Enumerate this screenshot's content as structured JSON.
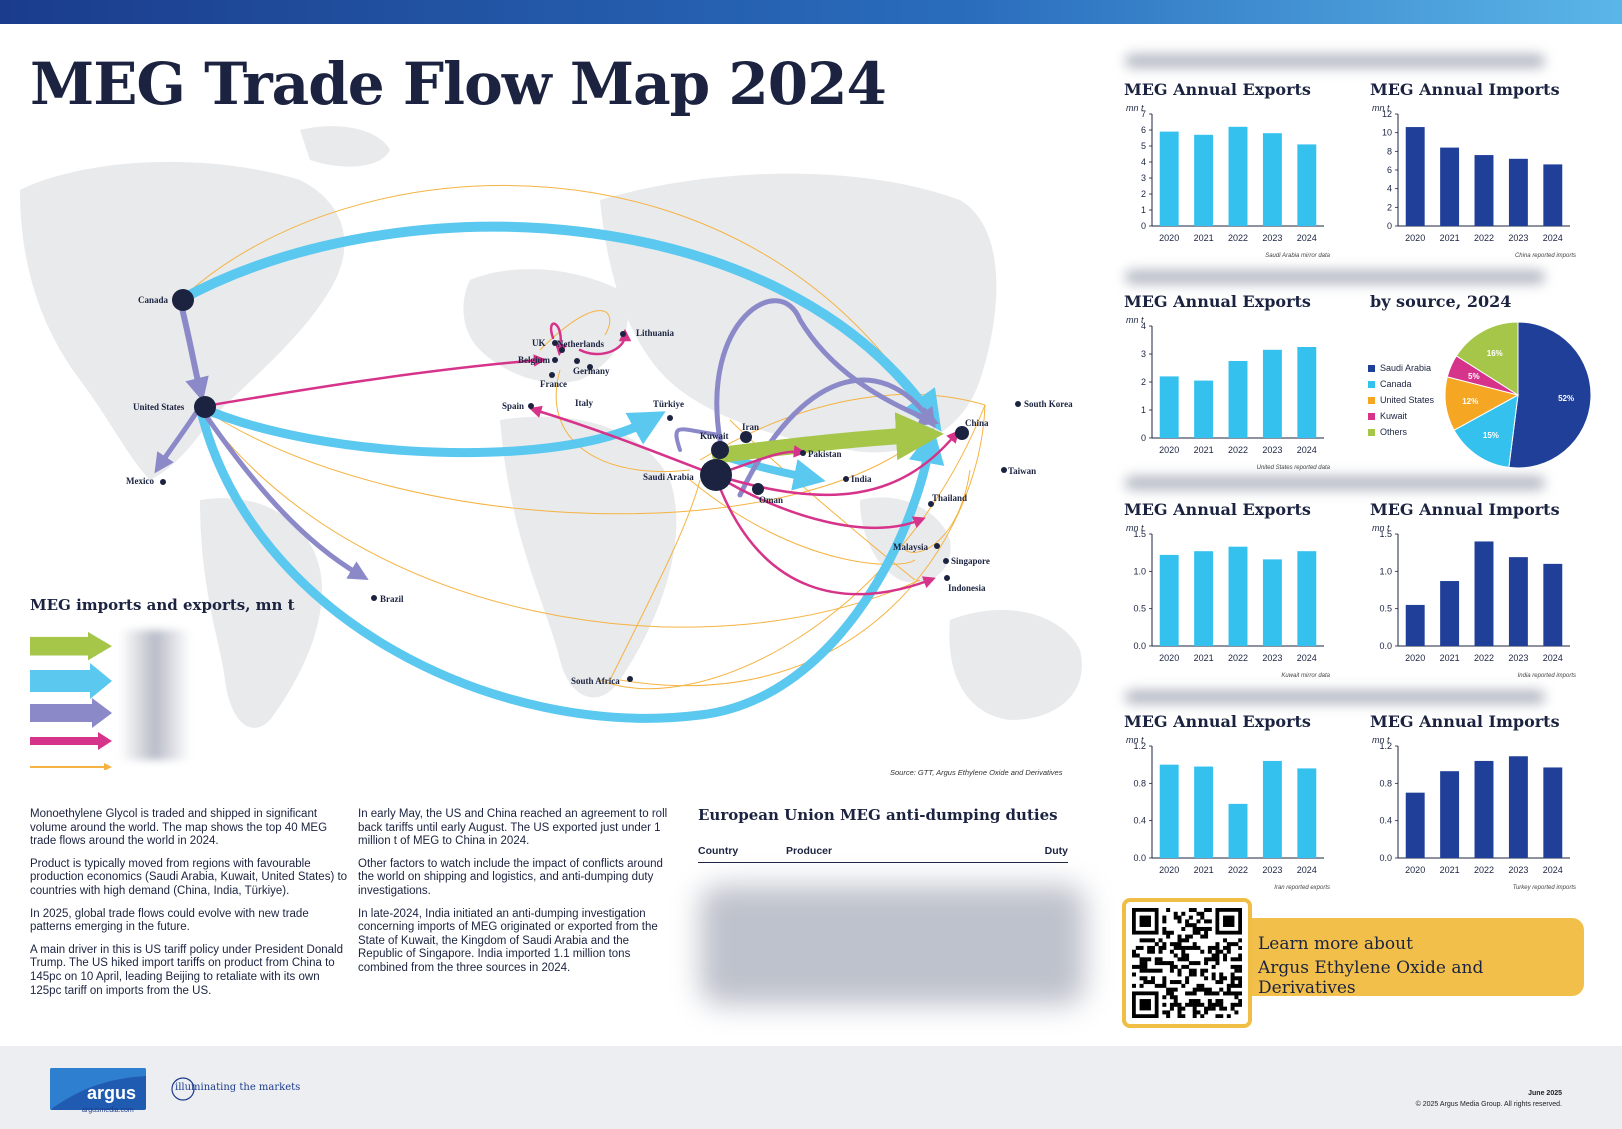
{
  "title": "MEG Trade Flow Map 2024",
  "colors": {
    "green": "#a6c64a",
    "lightblue": "#5bc8f0",
    "purple": "#8c89c9",
    "magenta": "#d6338a",
    "orange": "#f5b342",
    "navy": "#1b2340",
    "darkblue": "#1f3f99"
  },
  "map": {
    "labels": [
      {
        "id": "canada",
        "text": "Canada"
      },
      {
        "id": "us",
        "text": "United States"
      },
      {
        "id": "mexico",
        "text": "Mexico"
      },
      {
        "id": "brazil",
        "text": "Brazil"
      },
      {
        "id": "uk",
        "text": "UK"
      },
      {
        "id": "netherlands",
        "text": "Netherlands"
      },
      {
        "id": "belgium",
        "text": "Belgium"
      },
      {
        "id": "germany",
        "text": "Germany"
      },
      {
        "id": "france",
        "text": "France"
      },
      {
        "id": "lithuania",
        "text": "Lithuania"
      },
      {
        "id": "italy",
        "text": "Italy"
      },
      {
        "id": "spain",
        "text": "Spain"
      },
      {
        "id": "turkiye",
        "text": "Türkiye"
      },
      {
        "id": "iran",
        "text": "Iran"
      },
      {
        "id": "kuwait",
        "text": "Kuwait"
      },
      {
        "id": "saudi",
        "text": "Saudi Arabia"
      },
      {
        "id": "pakistan",
        "text": "Pakistan"
      },
      {
        "id": "india",
        "text": "India"
      },
      {
        "id": "oman",
        "text": "Oman"
      },
      {
        "id": "china",
        "text": "China"
      },
      {
        "id": "southkorea",
        "text": "South Korea"
      },
      {
        "id": "taiwan",
        "text": "Taiwan"
      },
      {
        "id": "thailand",
        "text": "Thailand"
      },
      {
        "id": "malaysia",
        "text": "Malaysia"
      },
      {
        "id": "singapore",
        "text": "Singapore"
      },
      {
        "id": "indonesia",
        "text": "Indonesia"
      },
      {
        "id": "southafrica",
        "text": "South Africa"
      }
    ]
  },
  "legend": {
    "title": "MEG imports and exports, mn t"
  },
  "source": "Source: GTT, Argus Ethylene Oxide and Derivatives",
  "text_col1": [
    "Monoethylene Glycol is traded and shipped in significant volume around the world. The map shows the top 40 MEG trade flows around the world in 2024.",
    "Product is typically moved from regions with favourable production economics (Saudi Arabia, Kuwait, United States) to countries with high demand (China, India, Türkiye).",
    "In 2025, global trade flows could evolve with new trade patterns emerging in the future.",
    "A main driver in this is US tariff policy under President Donald Trump. The US hiked import tariffs on product from China to 145pc on 10 April, leading Beijing to retaliate with its own 125pc tariff on imports from the US."
  ],
  "text_col2": [
    "In early May, the US and China reached an agreement to roll back tariffs until early August. The US exported just under 1 million t of MEG to China in 2024.",
    "Other factors to watch include the impact of conflicts around the world on shipping and logistics, and anti-dumping duty investigations.",
    "In late-2024, India initiated an anti-dumping investigation concerning imports of MEG originated or exported from the State of Kuwait, the Kingdom of Saudi Arabia and the Republic of Singapore. India imported 1.1 million tons combined from the three sources in 2024."
  ],
  "eu": {
    "title": "European Union MEG anti-dumping duties",
    "col_country": "Country",
    "col_producer": "Producer",
    "col_duty": "Duty"
  },
  "chart_data": [
    {
      "type": "bar",
      "title": "MEG Annual Exports",
      "ylabel": "mn t",
      "categories": [
        "2020",
        "2021",
        "2022",
        "2023",
        "2024"
      ],
      "values": [
        5.9,
        5.7,
        6.2,
        5.8,
        5.1
      ],
      "ylim": [
        0,
        7
      ],
      "ticks": [
        0,
        1,
        2,
        3,
        4,
        5,
        6,
        7
      ],
      "color": "#35c1ee",
      "note": "Saudi Arabia mirror data"
    },
    {
      "type": "bar",
      "title": "MEG Annual Imports",
      "ylabel": "mn t",
      "categories": [
        "2020",
        "2021",
        "2022",
        "2023",
        "2024"
      ],
      "values": [
        10.6,
        8.4,
        7.6,
        7.2,
        6.6
      ],
      "ylim": [
        0,
        12
      ],
      "ticks": [
        0,
        2,
        4,
        6,
        8,
        10,
        12
      ],
      "color": "#1f3f99",
      "note": "China reported imports"
    },
    {
      "type": "bar",
      "title": "MEG Annual Exports",
      "ylabel": "mn t",
      "categories": [
        "2020",
        "2021",
        "2022",
        "2023",
        "2024"
      ],
      "values": [
        2.2,
        2.05,
        2.75,
        3.15,
        3.25
      ],
      "ylim": [
        0,
        4
      ],
      "ticks": [
        0,
        1,
        2,
        3,
        4
      ],
      "color": "#35c1ee",
      "note": "United States reported data"
    },
    {
      "type": "pie",
      "title": "by source, 2024",
      "labels": [
        "Saudi Arabia",
        "Canada",
        "United States",
        "Kuwait",
        "Others"
      ],
      "values": [
        52,
        15,
        12,
        5,
        16
      ],
      "display": [
        "52%",
        "15%",
        "12%",
        "5%",
        "16%"
      ],
      "colors": [
        "#1f3f99",
        "#35c1ee",
        "#f5a623",
        "#d6338a",
        "#a6c64a"
      ],
      "legend": "left"
    },
    {
      "type": "bar",
      "title": "MEG Annual Exports",
      "ylabel": "mn t",
      "categories": [
        "2020",
        "2021",
        "2022",
        "2023",
        "2024"
      ],
      "values": [
        1.22,
        1.27,
        1.33,
        1.16,
        1.27
      ],
      "ylim": [
        0,
        1.5
      ],
      "ticks": [
        "0.0",
        "0.5",
        "1.0",
        "1.5"
      ],
      "color": "#35c1ee",
      "note": "Kuwait mirror data"
    },
    {
      "type": "bar",
      "title": "MEG Annual Imports",
      "ylabel": "mn t",
      "categories": [
        "2020",
        "2021",
        "2022",
        "2023",
        "2024"
      ],
      "values": [
        0.55,
        0.87,
        1.4,
        1.19,
        1.1
      ],
      "ylim": [
        0,
        1.5
      ],
      "ticks": [
        "0.0",
        "0.5",
        "1.0",
        "1.5"
      ],
      "color": "#1f3f99",
      "note": "India reported imports"
    },
    {
      "type": "bar",
      "title": "MEG Annual Exports",
      "ylabel": "mn t",
      "categories": [
        "2020",
        "2021",
        "2022",
        "2023",
        "2024"
      ],
      "values": [
        1.0,
        0.98,
        0.58,
        1.04,
        0.96
      ],
      "ylim": [
        0,
        1.2
      ],
      "ticks": [
        "0.0",
        "0.4",
        "0.8",
        "1.2"
      ],
      "color": "#35c1ee",
      "note": "Iran reported exports"
    },
    {
      "type": "bar",
      "title": "MEG Annual Imports",
      "ylabel": "mn t",
      "categories": [
        "2020",
        "2021",
        "2022",
        "2023",
        "2024"
      ],
      "values": [
        0.7,
        0.93,
        1.04,
        1.09,
        0.97
      ],
      "ylim": [
        0,
        1.2
      ],
      "ticks": [
        "0.0",
        "0.4",
        "0.8",
        "1.2"
      ],
      "color": "#1f3f99",
      "note": "Turkey reported imports"
    }
  ],
  "cta": {
    "line1": "Learn more about",
    "line2": "Argus Ethylene Oxide and Derivatives"
  },
  "footer": {
    "logo": "argus",
    "url": "argusmedia.com",
    "tagline": "illuminating the markets",
    "date": "June 2025",
    "copyright": "© 2025 Argus Media Group. All rights reserved."
  }
}
